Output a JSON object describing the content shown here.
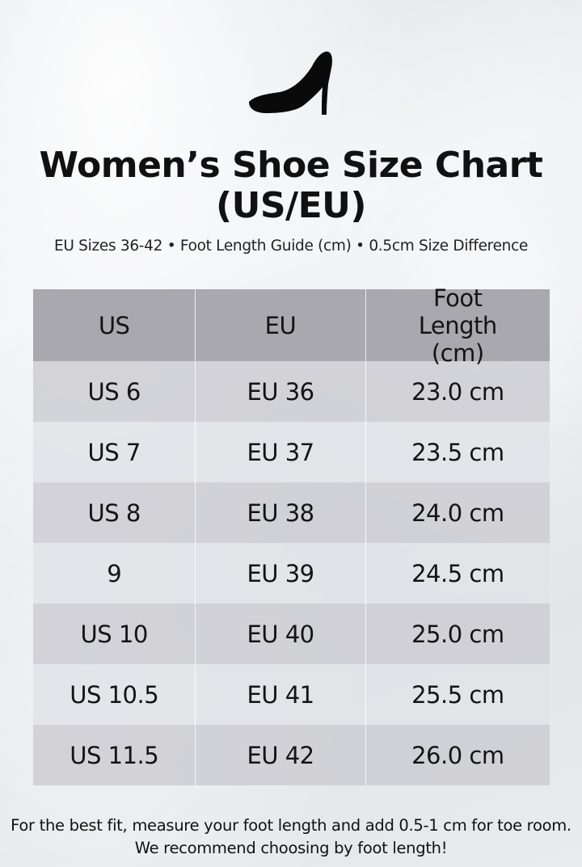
{
  "header": {
    "icon": "high-heel-shoe-icon",
    "title": "Women’s Shoe Size Chart (US/EU)",
    "subtitle": "EU Sizes 36-42 • Foot Length Guide (cm) • 0.5cm Size Difference"
  },
  "table": {
    "columns": [
      "US",
      "EU",
      "Foot Length (cm)"
    ],
    "rows": [
      [
        "US 6",
        "EU 36",
        "23.0 cm"
      ],
      [
        "US 7",
        "EU 37",
        "23.5 cm"
      ],
      [
        "US 8",
        "EU 38",
        "24.0 cm"
      ],
      [
        "9",
        "EU 39",
        "24.5 cm"
      ],
      [
        "US 10",
        "EU 40",
        "25.0 cm"
      ],
      [
        "US 10.5",
        "EU 41",
        "25.5 cm"
      ],
      [
        "US 11.5",
        "EU 42",
        "26.0 cm"
      ]
    ]
  },
  "footnote": "For the best fit, measure your foot length and add 0.5-1 cm for toe room. We recommend choosing by foot length!",
  "colors": {
    "header_row": "#a9a8ae",
    "row_dark": "#cdcdd2",
    "row_light": "#e2e3e7"
  }
}
